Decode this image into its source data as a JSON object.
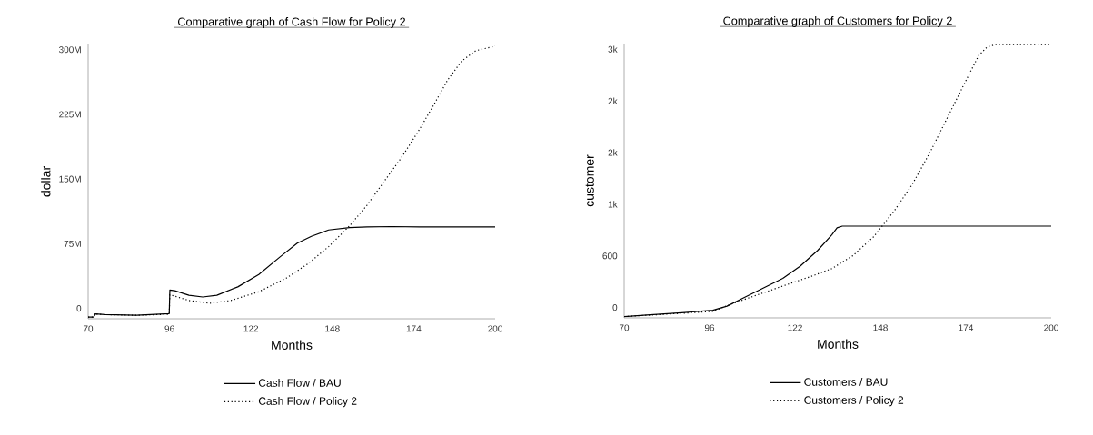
{
  "chart_data": [
    {
      "type": "line",
      "title": "Comparative graph of Cash Flow for Policy 2",
      "xlabel": "Months",
      "ylabel": "dollar",
      "xlim": [
        70,
        200
      ],
      "xticks": [
        70,
        96,
        122,
        148,
        174,
        200
      ],
      "ylim": [
        -12000000,
        306000000
      ],
      "yticks": [
        0,
        {
          "value": 75000000,
          "label": "75M"
        },
        {
          "value": 150000000,
          "label": "150M"
        },
        {
          "value": 225000000,
          "label": "225M"
        },
        {
          "value": 300000000,
          "label": "300M"
        }
      ],
      "legend": "bottom",
      "series": [
        {
          "name": "Cash Flow / BAU",
          "color": "#000000",
          "line_style": "solid",
          "x": [
            70,
            71.8,
            72.2,
            75.4,
            85.4,
            95.9,
            96.1,
            97.7,
            102.2,
            106.6,
            111.1,
            117.8,
            124.5,
            131.2,
            136.8,
            141.3,
            146.8,
            153.5,
            159.1,
            166.9,
            175.9,
            200
          ],
          "values": [
            -10000000,
            -10000000,
            -6400000,
            -7200000,
            -8000000,
            -6000000,
            21300000,
            20500000,
            15300000,
            13300000,
            15300000,
            25000000,
            39400000,
            59500000,
            75600000,
            83600000,
            90900000,
            93700000,
            94500000,
            94900000,
            94500000,
            94500000
          ]
        },
        {
          "name": "Cash Flow / Policy 2",
          "color": "#000000",
          "line_style": "dotted",
          "x": [
            70,
            71.8,
            72.2,
            75.4,
            85.4,
            95.9,
            96.1,
            102.2,
            108.9,
            115.6,
            124.5,
            133.4,
            140.1,
            146.8,
            153.5,
            159.1,
            164.7,
            170.3,
            175.9,
            180.4,
            184.8,
            189.3,
            193.8,
            200
          ],
          "values": [
            -10000000,
            -10000000,
            -6400000,
            -7200000,
            -8000000,
            -6800000,
            16000000,
            9200000,
            6000000,
            9200000,
            19300000,
            35400000,
            51500000,
            71600000,
            95700000,
            119800000,
            148000000,
            176000000,
            208000000,
            236000000,
            264600000,
            286700000,
            298800000,
            304000000
          ]
        }
      ]
    },
    {
      "type": "line",
      "title": "Comparative graph of Customers for Policy 2",
      "xlabel": "Months",
      "ylabel": "customer",
      "xlim": [
        70,
        200
      ],
      "xticks": [
        70,
        96,
        122,
        148,
        174,
        200
      ],
      "ylim": [
        -120,
        3065
      ],
      "yticks": [
        0,
        600,
        {
          "value": 1200,
          "label": "1k"
        },
        {
          "value": 1800,
          "label": "2k"
        },
        {
          "value": 2400,
          "label": "2k"
        },
        {
          "value": 3000,
          "label": "3k"
        }
      ],
      "legend": "bottom",
      "series": [
        {
          "name": "Customers  /  BAU",
          "color": "#000000",
          "line_style": "solid",
          "x": [
            70,
            77.9,
            88.5,
            97,
            101.3,
            106.6,
            111.9,
            118.3,
            123.6,
            128.9,
            133.2,
            134.8,
            136.4,
            141.7,
            200
          ],
          "values": [
            -105,
            -85,
            -57,
            -32,
            16,
            117,
            218,
            339,
            481,
            663,
            844,
            925,
            945,
            945,
            945
          ]
        },
        {
          "name": "Customers  /  Policy 2",
          "color": "#000000",
          "line_style": "dotted",
          "x": [
            70,
            88.5,
            97,
            102.3,
            109.8,
            118.3,
            126.8,
            133.2,
            139.6,
            146,
            152.3,
            157.7,
            163,
            168.3,
            173.6,
            177.9,
            180.5,
            183.2,
            200
          ],
          "values": [
            -105,
            -65,
            -44,
            36,
            137,
            250,
            360,
            452,
            602,
            824,
            1127,
            1430,
            1794,
            2198,
            2602,
            2925,
            3026,
            3054,
            3054
          ]
        }
      ]
    }
  ]
}
